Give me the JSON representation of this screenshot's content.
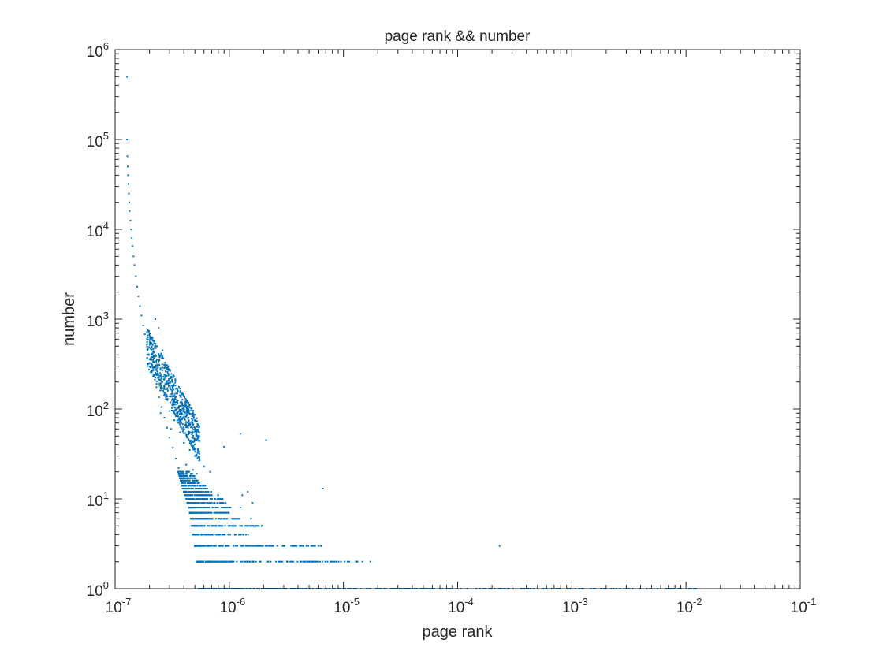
{
  "chart_data": {
    "type": "scatter",
    "title": "page rank && number",
    "xlabel": "page rank",
    "ylabel": "number",
    "x_scale": "log",
    "y_scale": "log",
    "xlim": [
      1e-07,
      0.1
    ],
    "ylim": [
      1,
      1000000
    ],
    "x_ticks": [
      {
        "base": "10",
        "exp": "-7",
        "value": 1e-07
      },
      {
        "base": "10",
        "exp": "-6",
        "value": 1e-06
      },
      {
        "base": "10",
        "exp": "-5",
        "value": 1e-05
      },
      {
        "base": "10",
        "exp": "-4",
        "value": 0.0001
      },
      {
        "base": "10",
        "exp": "-3",
        "value": 0.001
      },
      {
        "base": "10",
        "exp": "-2",
        "value": 0.01
      },
      {
        "base": "10",
        "exp": "-1",
        "value": 0.1
      }
    ],
    "y_ticks": [
      {
        "base": "10",
        "exp": "0",
        "value": 1
      },
      {
        "base": "10",
        "exp": "1",
        "value": 10
      },
      {
        "base": "10",
        "exp": "2",
        "value": 100
      },
      {
        "base": "10",
        "exp": "3",
        "value": 1000
      },
      {
        "base": "10",
        "exp": "4",
        "value": 10000
      },
      {
        "base": "10",
        "exp": "5",
        "value": 100000
      },
      {
        "base": "10",
        "exp": "6",
        "value": 1000000
      }
    ],
    "grid": false,
    "box": true,
    "marker_color": "#0072BD",
    "series": [
      {
        "points": [
          [
            1.27e-07,
            500000
          ],
          [
            1.27e-07,
            100000
          ],
          [
            1.28e-07,
            65000
          ],
          [
            1.29e-07,
            50000
          ],
          [
            1.3e-07,
            40000
          ],
          [
            1.31e-07,
            32000
          ],
          [
            1.32e-07,
            25000
          ],
          [
            1.33e-07,
            20000
          ],
          [
            1.34e-07,
            16000
          ],
          [
            1.36e-07,
            12500
          ],
          [
            1.38e-07,
            10000
          ],
          [
            1.4e-07,
            8000
          ],
          [
            1.42e-07,
            6500
          ],
          [
            1.45e-07,
            5000
          ],
          [
            1.48e-07,
            4000
          ],
          [
            1.52e-07,
            3000
          ],
          [
            1.56e-07,
            2300
          ],
          [
            1.6e-07,
            1800
          ],
          [
            1.65e-07,
            1400
          ],
          [
            1.7e-07,
            1100
          ],
          [
            1.76e-07,
            850
          ],
          [
            1.82e-07,
            680
          ],
          [
            1.9e-07,
            520
          ],
          [
            1.98e-07,
            400
          ],
          [
            2.08e-07,
            300
          ],
          [
            2.18e-07,
            230
          ],
          [
            2.3e-07,
            175
          ],
          [
            2.42e-07,
            135
          ],
          [
            2.55e-07,
            105
          ],
          [
            2.7e-07,
            80
          ],
          [
            2.85e-07,
            62
          ],
          [
            3e-07,
            48
          ],
          [
            3.2e-07,
            37
          ],
          [
            3.4e-07,
            28
          ],
          [
            3.6e-07,
            22
          ],
          [
            3.85e-07,
            17
          ],
          [
            4.1e-07,
            13
          ],
          [
            4.4e-07,
            10
          ],
          [
            2.4e-07,
            800
          ],
          [
            1.9e-07,
            600
          ],
          [
            2.2e-07,
            330
          ],
          [
            2.6e-07,
            200
          ],
          [
            2.9e-07,
            160
          ],
          [
            3.2e-07,
            140
          ],
          [
            3.5e-07,
            120
          ],
          [
            4.2e-07,
            110
          ],
          [
            3e-07,
            95
          ],
          [
            3.4e-07,
            85
          ],
          [
            3.8e-07,
            70
          ],
          [
            2.5e-07,
            90
          ],
          [
            3.1e-07,
            60
          ],
          [
            3.7e-07,
            55
          ],
          [
            4e-07,
            42
          ],
          [
            4.5e-07,
            35
          ],
          [
            5e-07,
            30
          ],
          [
            5.5e-07,
            27
          ],
          [
            4.2e-07,
            24
          ],
          [
            4.8e-07,
            21
          ],
          [
            5.2e-07,
            19
          ],
          [
            6e-07,
            23
          ],
          [
            6.8e-07,
            20
          ],
          [
            9e-07,
            38
          ],
          [
            1.25e-06,
            53
          ],
          [
            2.1e-06,
            45
          ],
          [
            6.6e-06,
            13
          ],
          [
            1.3e-06,
            11
          ],
          [
            1.6e-06,
            9
          ],
          [
            1.45e-06,
            12
          ],
          [
            1.25e-06,
            8
          ],
          [
            1.55e-06,
            6
          ],
          [
            1.95e-06,
            5
          ],
          [
            2.25e-07,
            1000
          ],
          [
            2.6e-07,
            450
          ],
          [
            2.35e-07,
            260
          ],
          [
            2.75e-07,
            150
          ],
          [
            3.3e-07,
            75
          ],
          [
            0.000233,
            3
          ]
        ],
        "bands": [
          {
            "y": 1,
            "x_from": 5.4e-07,
            "x_to": 0.013,
            "count": 420
          },
          {
            "y": 2,
            "x_from": 5.2e-07,
            "x_to": 1.75e-05,
            "count": 160
          },
          {
            "y": 3,
            "x_from": 5e-07,
            "x_to": 6.7e-06,
            "count": 130
          },
          {
            "y": 4,
            "x_from": 4.8e-07,
            "x_to": 1.65e-06,
            "count": 110
          },
          {
            "y": 5,
            "x_from": 4.7e-07,
            "x_to": 1.95e-06,
            "count": 110
          },
          {
            "y": 6,
            "x_from": 4.6e-07,
            "x_to": 1.3e-06,
            "count": 95
          },
          {
            "y": 7,
            "x_from": 4.5e-07,
            "x_to": 1.05e-06,
            "count": 85
          },
          {
            "y": 8,
            "x_from": 4.4e-07,
            "x_to": 1.1e-06,
            "count": 85
          },
          {
            "y": 9,
            "x_from": 4.3e-07,
            "x_to": 9.8e-07,
            "count": 80
          },
          {
            "y": 10,
            "x_from": 4.2e-07,
            "x_to": 8.8e-07,
            "count": 75
          },
          {
            "y": 11,
            "x_from": 4.1e-07,
            "x_to": 8e-07,
            "count": 70
          },
          {
            "y": 12,
            "x_from": 4e-07,
            "x_to": 7e-07,
            "count": 65
          },
          {
            "y": 13,
            "x_from": 3.9e-07,
            "x_to": 6.5e-07,
            "count": 60
          },
          {
            "y": 14,
            "x_from": 3.85e-07,
            "x_to": 6.2e-07,
            "count": 55
          },
          {
            "y": 15,
            "x_from": 3.8e-07,
            "x_to": 5.6e-07,
            "count": 50
          },
          {
            "y": 16,
            "x_from": 3.75e-07,
            "x_to": 5.4e-07,
            "count": 45
          },
          {
            "y": 17,
            "x_from": 3.7e-07,
            "x_to": 5.2e-07,
            "count": 40
          },
          {
            "y": 18,
            "x_from": 3.65e-07,
            "x_to": 5e-07,
            "count": 35
          },
          {
            "y": 19,
            "x_from": 3.6e-07,
            "x_to": 4.8e-07,
            "count": 30
          },
          {
            "y": 20,
            "x_from": 3.55e-07,
            "x_to": 4.6e-07,
            "count": 25
          }
        ],
        "cloud": {
          "x_from": 1.9e-07,
          "x_to": 5.5e-07,
          "count": 650,
          "spread": 0.22
        }
      }
    ]
  }
}
